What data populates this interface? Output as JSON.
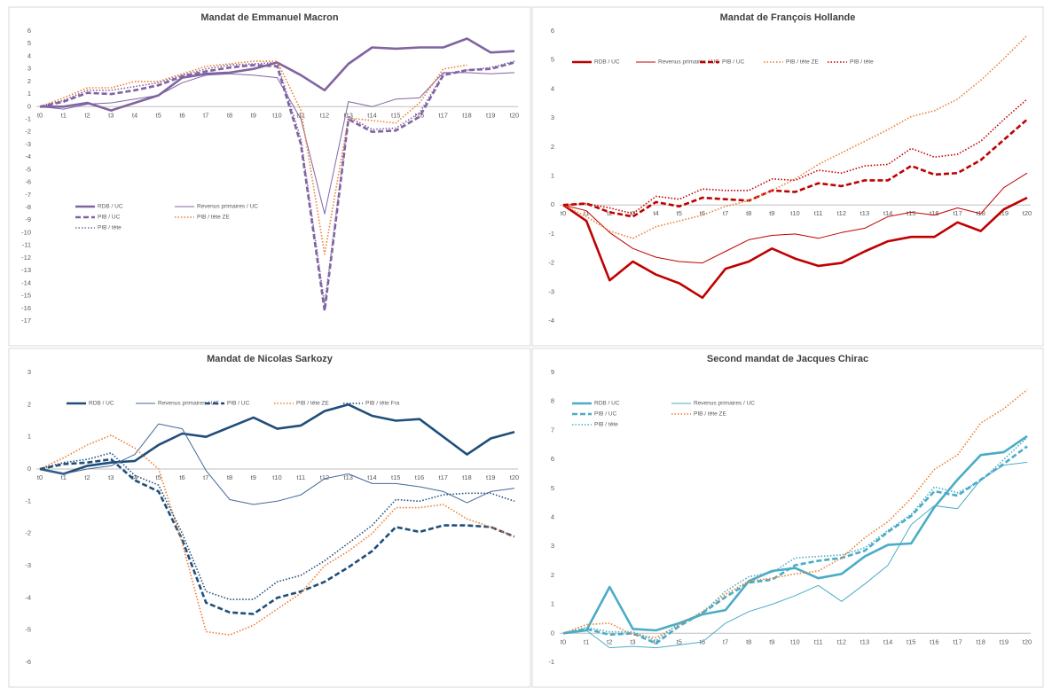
{
  "chart_data": [
    {
      "type": "line",
      "title": "Mandat de Emmanuel Macron",
      "categories": [
        "t0",
        "t1",
        "t2",
        "t3",
        "t4",
        "t5",
        "t6",
        "t7",
        "t8",
        "t9",
        "t10",
        "t11",
        "t12",
        "t13",
        "t14",
        "t15",
        "t16",
        "t17",
        "t18",
        "t19",
        "t20"
      ],
      "ylim": [
        -17,
        6
      ],
      "yticks": [
        6,
        5,
        4,
        3,
        2,
        1,
        0,
        -1,
        -2,
        -3,
        -4,
        -5,
        -6,
        -7,
        -8,
        -9,
        -10,
        -11,
        -12,
        -13,
        -14,
        -15,
        -16,
        -17
      ],
      "grid": false,
      "legend_position": "lower-left",
      "series": [
        {
          "name": "RDB / UC",
          "color": "#8064a2",
          "style": "thick",
          "values": [
            0,
            0,
            0.3,
            -0.3,
            0.3,
            0.9,
            2.3,
            2.6,
            2.7,
            3.0,
            3.5,
            2.5,
            1.3,
            3.4,
            4.7,
            4.6,
            4.7,
            4.7,
            5.4,
            4.3,
            4.4
          ]
        },
        {
          "name": "Revenus primaires / UC",
          "color": "#8064a2",
          "style": "thin",
          "values": [
            0,
            -0.2,
            0.2,
            0.3,
            0.6,
            0.9,
            1.9,
            2.5,
            2.6,
            2.5,
            2.3,
            -1.0,
            -8.5,
            0.4,
            0.0,
            0.6,
            0.7,
            2.7,
            2.7,
            2.6,
            2.7
          ]
        },
        {
          "name": "PIB / UC",
          "color": "#8064a2",
          "style": "dashed",
          "values": [
            0,
            0.4,
            1.1,
            1.0,
            1.3,
            1.7,
            2.4,
            2.8,
            3.1,
            3.3,
            3.2,
            -3.0,
            -16.2,
            -1.0,
            -2.0,
            -1.9,
            -0.8,
            2.5,
            2.9,
            3.0,
            3.5
          ]
        },
        {
          "name": "PIB / tête ZE",
          "color": "#ed7d31",
          "style": "dotted",
          "values": [
            0,
            0.7,
            1.5,
            1.5,
            2.0,
            2.0,
            2.6,
            3.2,
            3.4,
            3.6,
            3.6,
            -0.3,
            -11.7,
            -0.9,
            -1.1,
            -1.3,
            0.3,
            3.0,
            3.3,
            null,
            null
          ]
        },
        {
          "name": "PIB / tête",
          "color": "#8064a2",
          "style": "dotted",
          "values": [
            0,
            0.5,
            1.3,
            1.3,
            1.6,
            1.9,
            2.5,
            3.0,
            3.3,
            3.4,
            3.5,
            -2.6,
            -15.7,
            -0.8,
            -1.8,
            -1.7,
            -0.5,
            2.6,
            2.9,
            3.1,
            3.6
          ]
        }
      ]
    },
    {
      "type": "line",
      "title": "Mandat de François Hollande",
      "categories": [
        "t0",
        "t1",
        "t2",
        "t3",
        "t4",
        "t5",
        "t6",
        "t7",
        "t8",
        "t9",
        "t10",
        "t11",
        "t12",
        "t13",
        "t14",
        "t15",
        "t16",
        "t17",
        "t18",
        "t19",
        "t20"
      ],
      "ylim": [
        -4,
        6
      ],
      "yticks": [
        6,
        5,
        4,
        3,
        2,
        1,
        0,
        -1,
        -2,
        -3,
        -4
      ],
      "grid": false,
      "legend_position": "upper-left",
      "series": [
        {
          "name": "RDB / UC",
          "color": "#c00000",
          "style": "thick",
          "values": [
            0,
            -0.55,
            -2.6,
            -1.95,
            -2.4,
            -2.7,
            -3.2,
            -2.2,
            -1.95,
            -1.5,
            -1.85,
            -2.1,
            -2.0,
            -1.6,
            -1.25,
            -1.1,
            -1.1,
            -0.6,
            -0.9,
            -0.15,
            0.25
          ]
        },
        {
          "name": "Revenus primaires / UC",
          "color": "#c00000",
          "style": "thin",
          "values": [
            0,
            -0.2,
            -0.95,
            -1.5,
            -1.8,
            -1.95,
            -2.0,
            -1.6,
            -1.2,
            -1.05,
            -1.0,
            -1.15,
            -0.95,
            -0.8,
            -0.4,
            -0.25,
            -0.35,
            -0.1,
            -0.3,
            0.6,
            1.1
          ]
        },
        {
          "name": "PIB / UC",
          "color": "#c00000",
          "style": "dashed",
          "values": [
            0,
            0.05,
            -0.25,
            -0.4,
            0.1,
            -0.05,
            0.25,
            0.2,
            0.15,
            0.5,
            0.45,
            0.75,
            0.65,
            0.85,
            0.85,
            1.35,
            1.05,
            1.1,
            1.55,
            2.25,
            2.95
          ]
        },
        {
          "name": "PIB / tête ZE",
          "color": "#ed7d31",
          "style": "dotted",
          "values": [
            0,
            -0.4,
            -0.9,
            -1.15,
            -0.75,
            -0.55,
            -0.35,
            -0.05,
            0.15,
            0.5,
            0.9,
            1.4,
            1.8,
            2.2,
            2.6,
            3.05,
            3.25,
            3.65,
            4.3,
            5.05,
            5.85
          ]
        },
        {
          "name": "PIB / tête",
          "color": "#c00000",
          "style": "dotted",
          "values": [
            0,
            0.05,
            -0.1,
            -0.3,
            0.3,
            0.2,
            0.55,
            0.5,
            0.5,
            0.9,
            0.85,
            1.2,
            1.1,
            1.35,
            1.4,
            1.95,
            1.65,
            1.75,
            2.2,
            2.95,
            3.65
          ]
        }
      ]
    },
    {
      "type": "line",
      "title": "Mandat de Nicolas Sarkozy",
      "categories": [
        "t0",
        "t1",
        "t2",
        "t3",
        "t4",
        "t5",
        "t6",
        "t7",
        "t8",
        "t9",
        "t10",
        "t11",
        "t12",
        "t13",
        "t14",
        "t15",
        "t16",
        "t17",
        "t18",
        "t19",
        "t20"
      ],
      "ylim": [
        -6,
        3
      ],
      "yticks": [
        3,
        2,
        1,
        0,
        -1,
        -2,
        -3,
        -4,
        -5,
        -6
      ],
      "grid": false,
      "legend_position": "upper-center",
      "series": [
        {
          "name": "RDB / UC",
          "color": "#1f4e79",
          "style": "thick",
          "values": [
            0,
            -0.15,
            0.1,
            0.2,
            0.25,
            0.75,
            1.1,
            1.0,
            1.3,
            1.6,
            1.25,
            1.35,
            1.8,
            2.0,
            1.65,
            1.5,
            1.55,
            1.0,
            0.45,
            0.95,
            1.15
          ]
        },
        {
          "name": "Revenus primaires / UC",
          "color": "#44689a",
          "style": "thin",
          "values": [
            0,
            -0.15,
            0.0,
            0.1,
            0.45,
            1.4,
            1.25,
            -0.05,
            -0.95,
            -1.1,
            -1.0,
            -0.8,
            -0.3,
            -0.15,
            -0.45,
            -0.45,
            -0.55,
            -0.7,
            -1.05,
            -0.7,
            -0.6
          ]
        },
        {
          "name": "PIB / UC",
          "color": "#1f4e79",
          "style": "dashed",
          "values": [
            0,
            0.15,
            0.2,
            0.3,
            -0.35,
            -0.7,
            -2.2,
            -4.15,
            -4.45,
            -4.5,
            -4.0,
            -3.8,
            -3.5,
            -3.05,
            -2.55,
            -1.8,
            -1.95,
            -1.75,
            -1.75,
            -1.8,
            -2.1
          ]
        },
        {
          "name": "PIB / tête ZE",
          "color": "#ed7d31",
          "style": "dotted",
          "values": [
            0,
            0.35,
            0.75,
            1.05,
            0.65,
            0.0,
            -2.3,
            -5.05,
            -5.15,
            -4.85,
            -4.35,
            -3.85,
            -3.0,
            -2.55,
            -2.0,
            -1.2,
            -1.2,
            -1.1,
            -1.55,
            -1.8,
            -2.1
          ]
        },
        {
          "name": "PIB / tête Fra",
          "color": "#1f4e79",
          "style": "dotted",
          "values": [
            0,
            0.2,
            0.3,
            0.5,
            -0.2,
            -0.5,
            -2.0,
            -3.8,
            -4.05,
            -4.05,
            -3.5,
            -3.3,
            -2.85,
            -2.3,
            -1.75,
            -0.95,
            -1.0,
            -0.8,
            -0.75,
            -0.75,
            -1.0
          ]
        }
      ]
    },
    {
      "type": "line",
      "title": "Second mandat de Jacques Chirac",
      "categories": [
        "t0",
        "t1",
        "t2",
        "t3",
        "t4",
        "t5",
        "t6",
        "t7",
        "t8",
        "t9",
        "t10",
        "t11",
        "t12",
        "t13",
        "t14",
        "t15",
        "t16",
        "t17",
        "t18",
        "t19",
        "t20"
      ],
      "ylim": [
        -1,
        9
      ],
      "yticks": [
        9,
        8,
        7,
        6,
        5,
        4,
        3,
        2,
        1,
        0,
        -1
      ],
      "grid": false,
      "legend_position": "upper-left",
      "series": [
        {
          "name": "RDB / UC",
          "color": "#4bacc6",
          "style": "thick",
          "values": [
            0,
            0.1,
            1.6,
            0.15,
            0.1,
            0.35,
            0.65,
            0.8,
            1.8,
            2.15,
            2.25,
            1.9,
            2.05,
            2.65,
            3.05,
            3.1,
            4.35,
            5.3,
            6.15,
            6.25,
            6.8
          ]
        },
        {
          "name": "Revenus primaires / UC",
          "color": "#4bacc6",
          "style": "thin",
          "values": [
            0,
            0.1,
            -0.5,
            -0.45,
            -0.5,
            -0.4,
            -0.3,
            0.35,
            0.75,
            1.0,
            1.3,
            1.65,
            1.1,
            1.7,
            2.35,
            3.75,
            4.4,
            4.3,
            5.3,
            5.8,
            5.9
          ]
        },
        {
          "name": "PIB / UC",
          "color": "#4bacc6",
          "style": "dashed",
          "values": [
            0,
            0.15,
            -0.05,
            0.0,
            -0.35,
            0.25,
            0.7,
            1.25,
            1.75,
            1.85,
            2.35,
            2.5,
            2.6,
            2.85,
            3.5,
            4.05,
            4.9,
            4.75,
            5.3,
            5.85,
            6.45
          ]
        },
        {
          "name": "PIB / tête ZE",
          "color": "#ed7d31",
          "style": "dotted",
          "values": [
            0,
            0.3,
            0.35,
            -0.05,
            -0.15,
            0.3,
            0.75,
            1.35,
            1.8,
            1.9,
            2.05,
            2.15,
            2.6,
            3.3,
            3.85,
            4.65,
            5.65,
            6.15,
            7.25,
            7.75,
            8.4
          ]
        },
        {
          "name": "PIB / tête",
          "color": "#4bacc6",
          "style": "dotted",
          "values": [
            0,
            0.2,
            0.05,
            0.05,
            -0.25,
            0.35,
            0.7,
            1.45,
            1.95,
            2.1,
            2.6,
            2.65,
            2.7,
            2.95,
            3.55,
            4.1,
            5.05,
            4.85,
            5.25,
            6.0,
            6.75
          ]
        }
      ]
    }
  ]
}
